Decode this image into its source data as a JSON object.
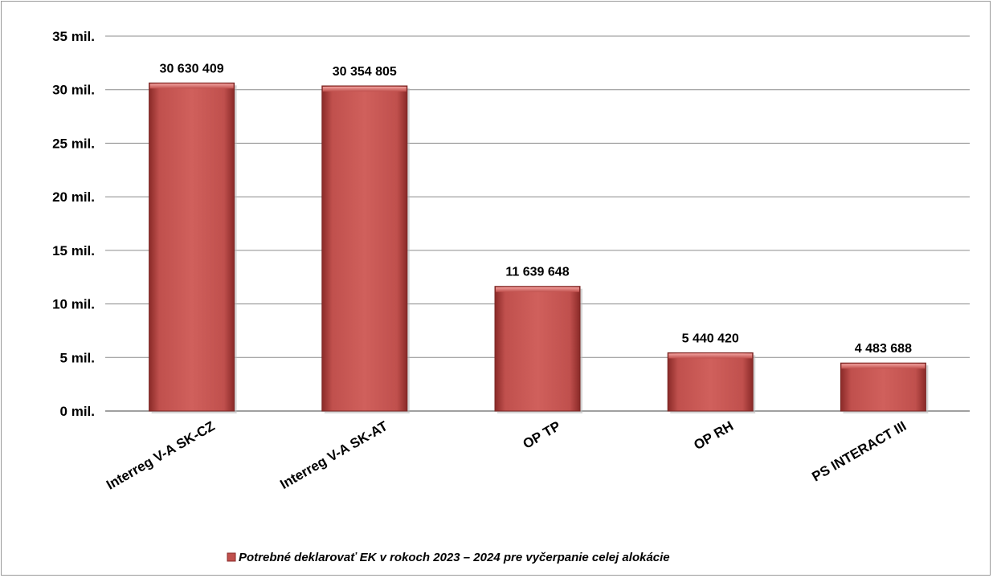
{
  "chart_data": {
    "type": "bar",
    "categories": [
      "Interreg V-A SK-CZ",
      "Interreg V-A SK-AT",
      "OP TP",
      "OP RH",
      "PS INTERACT III"
    ],
    "series": [
      {
        "name": "Potrebné deklarovať EK v rokoch 2023 – 2024 pre vyčerpanie celej alokácie",
        "values": [
          30630409,
          30354805,
          11639648,
          5440420,
          4483688
        ],
        "labels": [
          "30 630 409",
          "30 354 805",
          "11 639 648",
          "5 440 420",
          "4 483 688"
        ],
        "color": "#c0504d"
      }
    ],
    "ylim": [
      0,
      35000000
    ],
    "yticks": [
      0,
      5000000,
      10000000,
      15000000,
      20000000,
      25000000,
      30000000,
      35000000
    ],
    "ytick_labels": [
      "0 mil.",
      "5 mil.",
      "10 mil.",
      "15 mil.",
      "20 mil.",
      "25 mil.",
      "30 mil.",
      "35 mil."
    ],
    "grid": true,
    "legend_position": "bottom"
  }
}
